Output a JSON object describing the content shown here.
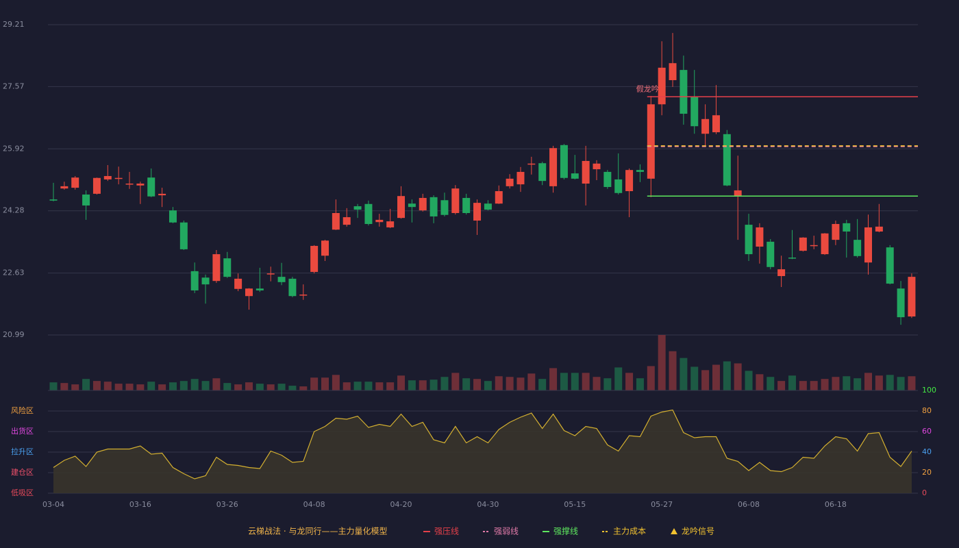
{
  "chart_data": [
    {
      "type": "candlestick",
      "categories": [
        "03-04",
        null,
        null,
        null,
        null,
        null,
        null,
        null,
        "03-16",
        null,
        null,
        null,
        null,
        null,
        null,
        null,
        "03-26",
        null,
        null,
        null,
        null,
        null,
        null,
        null,
        "04-08",
        null,
        null,
        null,
        null,
        null,
        null,
        null,
        "04-20",
        null,
        null,
        null,
        null,
        null,
        null,
        null,
        "04-30",
        null,
        null,
        null,
        null,
        null,
        null,
        null,
        "05-15",
        null,
        null,
        null,
        null,
        null,
        null,
        null,
        "05-27",
        null,
        null,
        null,
        null,
        null,
        null,
        null,
        "06-08",
        null,
        null,
        null,
        null,
        null,
        null,
        null,
        "06-18",
        null,
        null,
        null,
        null,
        null,
        null,
        null
      ],
      "open": [
        24.58,
        24.87,
        24.89,
        24.71,
        24.73,
        25.11,
        25.13,
        24.99,
        24.95,
        25.16,
        24.69,
        24.29,
        23.97,
        22.68,
        22.51,
        22.42,
        23.02,
        22.21,
        22.02,
        22.22,
        22.6,
        22.53,
        22.48,
        22.04,
        22.66,
        23.09,
        23.78,
        23.91,
        24.4,
        24.46,
        23.98,
        23.84,
        24.09,
        24.47,
        24.29,
        24.64,
        24.56,
        24.22,
        24.62,
        24.02,
        24.47,
        24.47,
        24.93,
        24.98,
        25.51,
        25.54,
        24.93,
        26.02,
        25.27,
        25.0,
        25.38,
        25.31,
        25.11,
        24.8,
        25.36,
        25.13,
        27.1,
        27.74,
        28.01,
        27.3,
        26.32,
        26.36,
        26.31,
        24.66,
        23.91,
        23.33,
        23.46,
        22.55,
        23.04,
        23.22,
        23.35,
        23.13,
        23.51,
        23.95,
        23.51,
        22.91,
        23.73,
        23.31,
        22.22,
        21.48
      ],
      "close": [
        24.55,
        24.93,
        25.16,
        24.42,
        25.15,
        25.2,
        25.15,
        25.0,
        25.0,
        24.66,
        24.73,
        23.97,
        23.26,
        22.17,
        22.33,
        23.13,
        22.53,
        22.48,
        22.22,
        22.17,
        22.62,
        22.39,
        22.02,
        22.06,
        23.35,
        23.49,
        24.22,
        24.11,
        24.31,
        23.93,
        24.04,
        24.0,
        24.67,
        24.38,
        24.62,
        24.13,
        24.17,
        24.87,
        24.22,
        24.49,
        24.31,
        24.8,
        25.13,
        25.31,
        25.53,
        25.07,
        25.94,
        25.15,
        25.13,
        25.6,
        25.53,
        24.91,
        24.75,
        25.36,
        25.31,
        27.1,
        28.07,
        28.19,
        26.85,
        26.52,
        26.71,
        26.81,
        24.95,
        24.82,
        23.13,
        23.84,
        22.79,
        22.73,
        23.02,
        23.57,
        23.37,
        23.68,
        23.93,
        23.73,
        23.08,
        23.84,
        23.86,
        22.35,
        21.46,
        22.53
      ],
      "high": [
        25.02,
        25.05,
        25.2,
        24.82,
        25.16,
        25.49,
        25.45,
        25.31,
        25.05,
        25.4,
        24.89,
        24.38,
        24.02,
        22.91,
        22.59,
        23.24,
        23.19,
        22.62,
        22.23,
        22.77,
        22.8,
        22.9,
        22.53,
        22.33,
        23.37,
        23.51,
        24.58,
        24.35,
        24.46,
        24.55,
        24.2,
        24.33,
        24.93,
        24.58,
        24.73,
        24.69,
        24.76,
        24.96,
        24.73,
        24.58,
        24.56,
        24.95,
        25.25,
        25.44,
        25.71,
        25.58,
        26.0,
        26.05,
        25.76,
        26.0,
        25.62,
        25.36,
        25.8,
        25.4,
        25.51,
        27.32,
        28.77,
        28.99,
        28.39,
        28.01,
        27.1,
        27.61,
        26.42,
        25.74,
        24.2,
        23.95,
        23.53,
        23.09,
        23.77,
        23.58,
        23.62,
        23.69,
        24.02,
        24.04,
        24.06,
        24.18,
        24.46,
        23.37,
        22.42,
        22.62
      ],
      "low": [
        24.53,
        24.84,
        24.84,
        24.04,
        24.71,
        25.07,
        24.98,
        24.86,
        24.46,
        24.64,
        24.38,
        23.95,
        23.24,
        22.1,
        21.82,
        22.37,
        22.5,
        22.15,
        21.66,
        22.13,
        22.41,
        22.31,
        21.99,
        21.92,
        22.62,
        22.95,
        23.77,
        23.86,
        24.09,
        23.89,
        23.86,
        23.82,
        24.07,
        23.97,
        24.26,
        23.95,
        24.13,
        24.18,
        24.18,
        23.64,
        24.29,
        24.46,
        24.87,
        24.78,
        25.24,
        24.96,
        24.76,
        25.11,
        25.11,
        24.42,
        25.09,
        24.86,
        24.71,
        24.11,
        25.04,
        24.64,
        26.81,
        27.56,
        26.56,
        26.32,
        26.0,
        26.31,
        24.93,
        23.51,
        22.95,
        22.88,
        22.73,
        22.26,
        23.0,
        23.2,
        23.26,
        23.11,
        23.37,
        23.04,
        23.04,
        22.59,
        23.71,
        22.33,
        21.26,
        21.44
      ],
      "ylim": [
        20.99,
        29.21
      ],
      "yticks": [
        29.21,
        27.57,
        25.92,
        24.28,
        22.63,
        20.99
      ],
      "grid": true,
      "up_color": "#ea4a3f",
      "down_color": "#22a860",
      "annotation": {
        "text": "假龙吟",
        "x": 55,
        "color": "#f2707a"
      },
      "series": [
        {
          "name": "强压线",
          "color": "#e5404a",
          "value": 27.3,
          "dash": false
        },
        {
          "name": "强弱线",
          "color": "#e07aa8",
          "value": 25.98,
          "dash": true
        },
        {
          "name": "强撑线",
          "color": "#5ee85e",
          "value": 24.67,
          "dash": false
        },
        {
          "name": "主力成本",
          "color": "#f2c230",
          "value": 26.0,
          "dash": true
        }
      ],
      "legend": {
        "title": "云梯战法 · 与龙同行——主力量化模型",
        "title_color": "#f0b44a",
        "signal": "龙吟信号",
        "signal_color": "#f2c230"
      }
    },
    {
      "type": "bar",
      "values": [
        12,
        11,
        9,
        17,
        14,
        13,
        10,
        10,
        9,
        13,
        9,
        12,
        14,
        17,
        14,
        18,
        11,
        9,
        12,
        10,
        9,
        10,
        7,
        6,
        19,
        19,
        23,
        12,
        13,
        13,
        12,
        12,
        22,
        15,
        15,
        16,
        20,
        26,
        18,
        17,
        14,
        21,
        20,
        19,
        25,
        17,
        33,
        26,
        26,
        26,
        20,
        18,
        34,
        26,
        18,
        36,
        82,
        58,
        48,
        35,
        30,
        38,
        43,
        40,
        29,
        24,
        20,
        14,
        22,
        14,
        14,
        17,
        20,
        21,
        18,
        26,
        22,
        23,
        20,
        21
      ],
      "ylim": [
        0,
        82
      ],
      "up_color": "#6e2f38",
      "down_color": "#1d5a44"
    },
    {
      "type": "area",
      "values": [
        25,
        32,
        36,
        26,
        40,
        43,
        43,
        43,
        46,
        38,
        39,
        25,
        19,
        14,
        17,
        35,
        28,
        27,
        25,
        24,
        41,
        37,
        30,
        31,
        60,
        65,
        73,
        72,
        75,
        64,
        67,
        65,
        77,
        65,
        69,
        52,
        49,
        65,
        49,
        55,
        49,
        62,
        69,
        74,
        78,
        63,
        77,
        61,
        56,
        65,
        63,
        47,
        41,
        56,
        55,
        75,
        79,
        81,
        59,
        54,
        55,
        55,
        34,
        31,
        22,
        30,
        22,
        21,
        25,
        35,
        34,
        46,
        55,
        53,
        41,
        58,
        59,
        35,
        26,
        41
      ],
      "ylim": [
        0,
        100
      ],
      "yticks": [
        0,
        20,
        40,
        60,
        80,
        100
      ],
      "ytick_colors": [
        "#e84a5a",
        "#f0a040",
        "#4aa0f0",
        "#e048e0",
        "#f0a040",
        "#44e844"
      ],
      "zones": [
        {
          "label": "风险区",
          "value": 80,
          "color": "#f0a040"
        },
        {
          "label": "出货区",
          "value": 60,
          "color": "#e048e0"
        },
        {
          "label": "拉升区",
          "value": 40,
          "color": "#4aa0f0"
        },
        {
          "label": "建仓区",
          "value": 20,
          "color": "#f0506a"
        },
        {
          "label": "低吸区",
          "value": 0,
          "color": "#e84a5a"
        }
      ],
      "color": "#d4b030",
      "fill": "#3a352a"
    }
  ]
}
